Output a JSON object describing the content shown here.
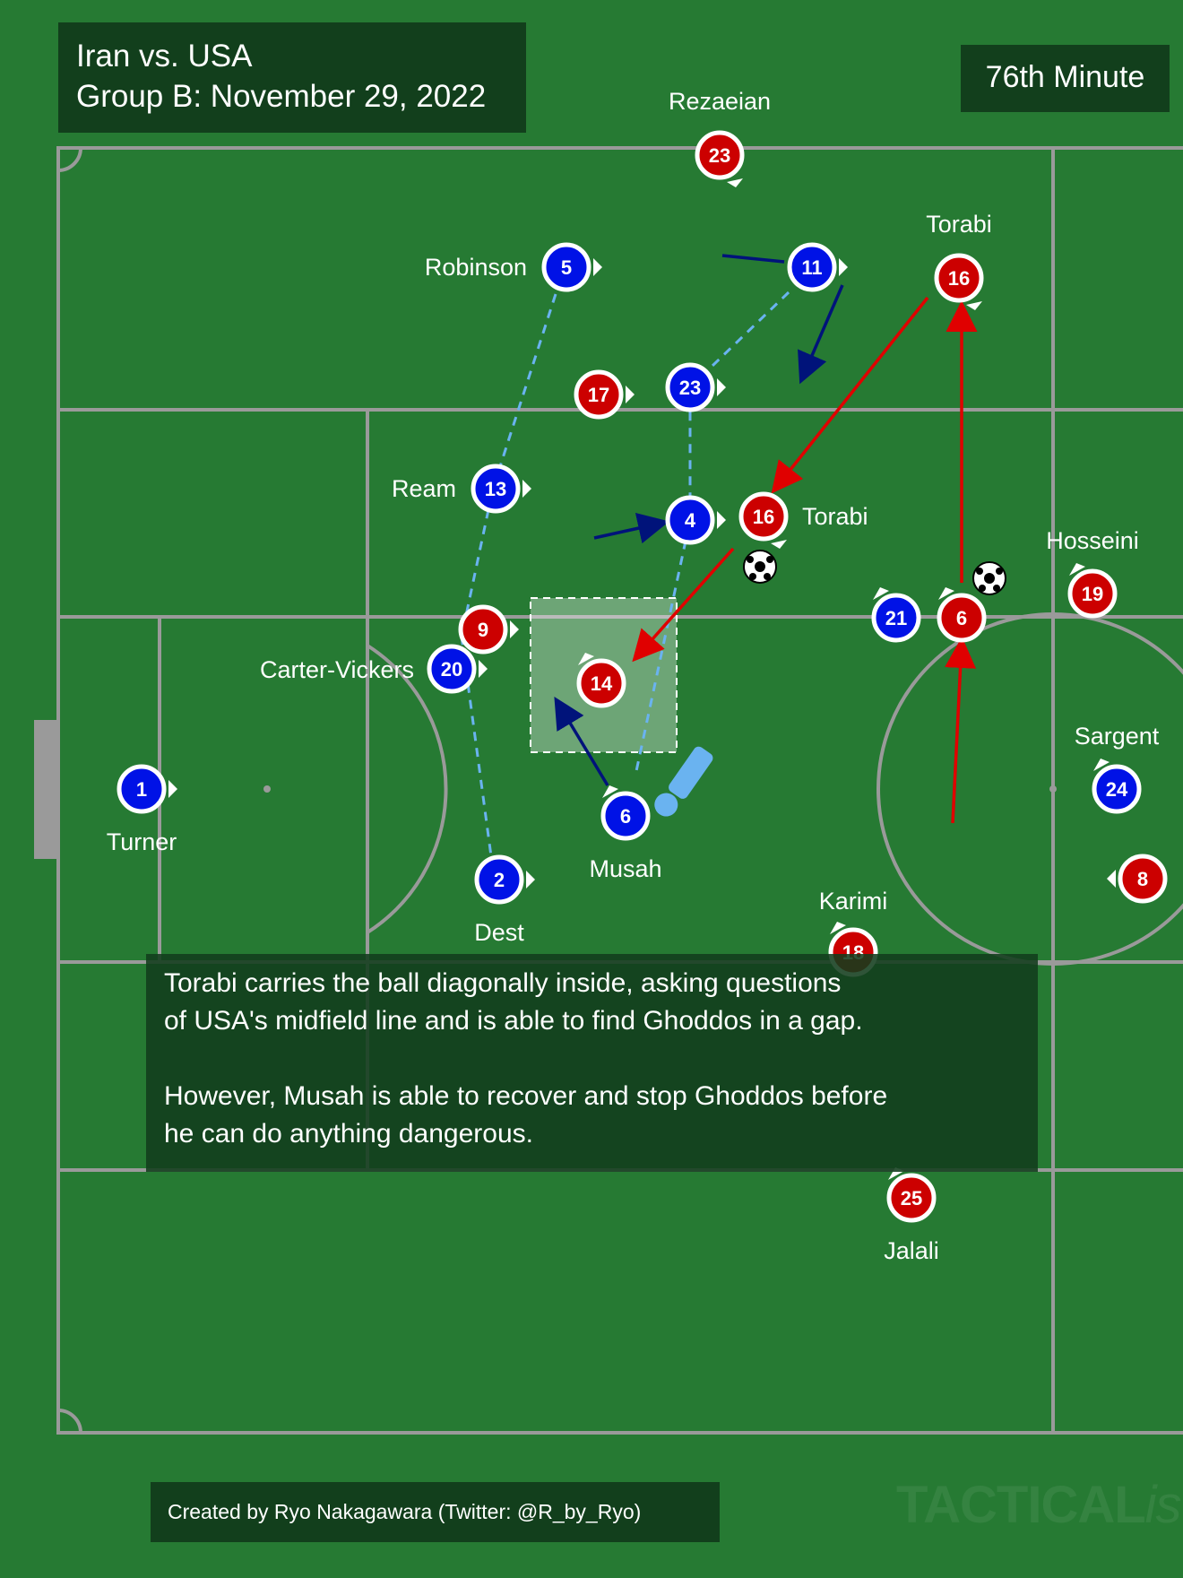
{
  "header": {
    "match": "Iran vs. USA",
    "group_date": "Group B: November 29, 2022",
    "minute": "76th Minute"
  },
  "caption": {
    "line1": "Torabi carries the ball diagonally inside, asking questions",
    "line2": "of USA's midfield line and is able to find Ghoddos in a gap.",
    "line3": "However, Musah is able to recover and stop Ghoddos before",
    "line4": "he can do anything dangerous."
  },
  "credit": "Created by Ryo Nakagawara (Twitter: @R_by_Ryo)",
  "watermark": {
    "main": "TACTICAL",
    "suffix": "ista"
  },
  "colors": {
    "pitch": "#267a33",
    "line": "#9a9a9a",
    "usa": "#0012e6",
    "iran": "#cc0000",
    "usa_link": "#6ab3f0",
    "usa_run": "#00137a",
    "iran_run": "#e00000",
    "panel": "#123f1c"
  },
  "players": {
    "usa": [
      {
        "num": "1",
        "name": "Turner"
      },
      {
        "num": "5",
        "name": "Robinson"
      },
      {
        "num": "11",
        "name": ""
      },
      {
        "num": "23",
        "name": ""
      },
      {
        "num": "13",
        "name": "Ream"
      },
      {
        "num": "4",
        "name": ""
      },
      {
        "num": "20",
        "name": "Carter-Vickers"
      },
      {
        "num": "6",
        "name": "Musah"
      },
      {
        "num": "2",
        "name": "Dest"
      },
      {
        "num": "21",
        "name": ""
      },
      {
        "num": "24",
        "name": "Sargent"
      }
    ],
    "iran": [
      {
        "num": "23",
        "name": "Rezaeian"
      },
      {
        "num": "16",
        "name": "Torabi"
      },
      {
        "num": "17",
        "name": ""
      },
      {
        "num": "16",
        "name": "Torabi"
      },
      {
        "num": "9",
        "name": ""
      },
      {
        "num": "14",
        "name": ""
      },
      {
        "num": "6",
        "name": ""
      },
      {
        "num": "19",
        "name": "Hosseini"
      },
      {
        "num": "8",
        "name": ""
      },
      {
        "num": "18",
        "name": "Karimi"
      },
      {
        "num": "25",
        "name": "Jalali"
      }
    ]
  },
  "icons": {
    "ball": "soccer-ball-icon",
    "alert": "exclamation-icon",
    "facing": "direction-triangle-icon"
  }
}
